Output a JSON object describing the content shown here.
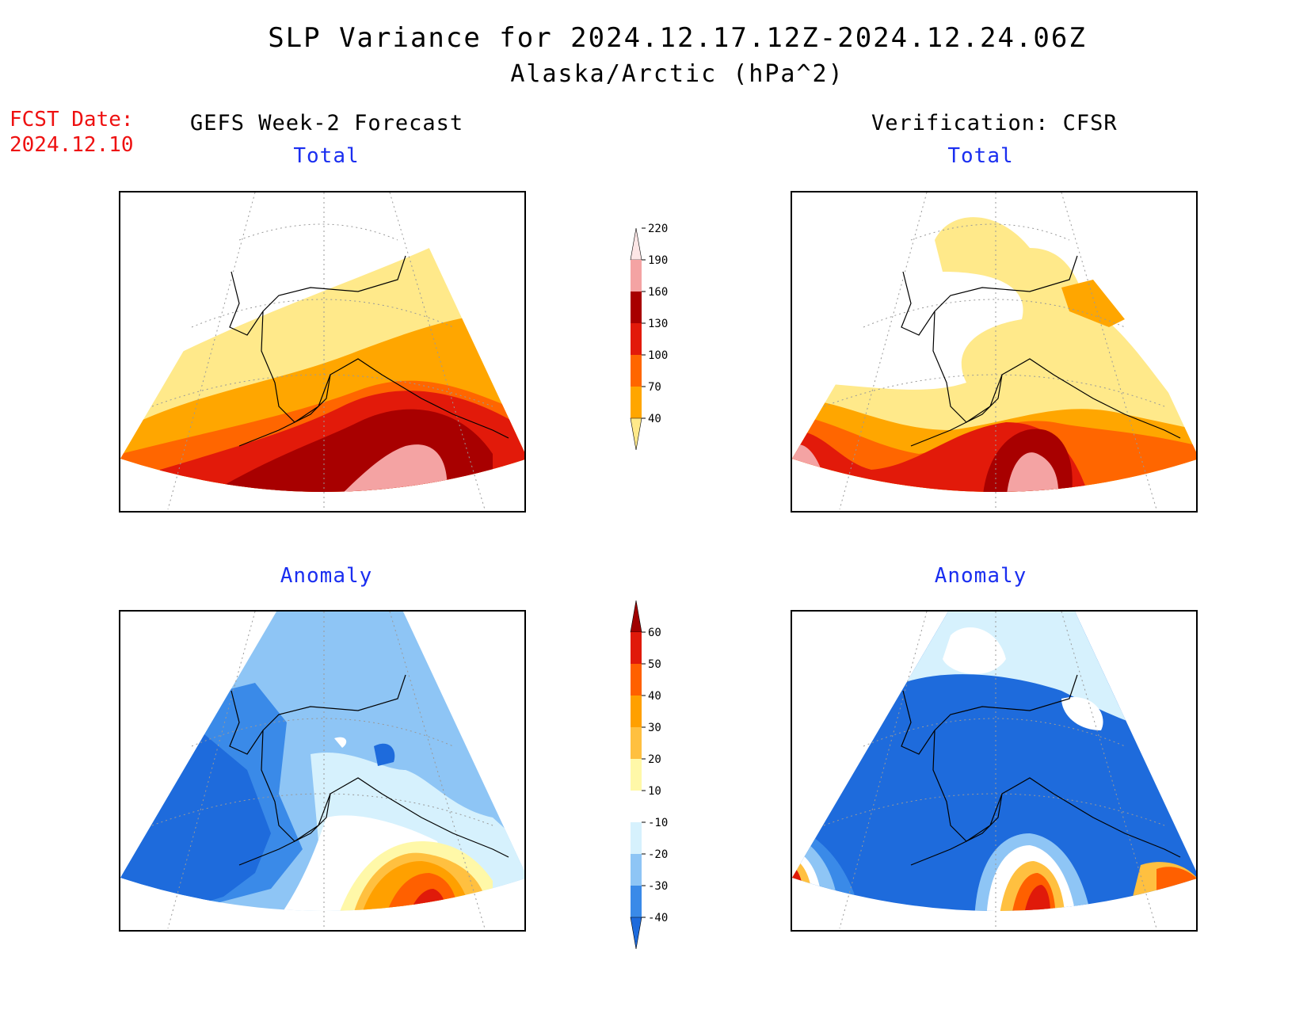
{
  "title": "SLP Variance for 2024.12.17.12Z-2024.12.24.06Z",
  "subtitle": "Alaska/Arctic (hPa^2)",
  "fcst_date_label": "FCST Date:",
  "fcst_date_value": "2024.12.10",
  "left_heading": "GEFS Week-2 Forecast",
  "right_heading": "Verification: CFSR",
  "panels": {
    "forecast_total_label": "Total",
    "verification_total_label": "Total",
    "forecast_anomaly_label": "Anomaly",
    "verification_anomaly_label": "Anomaly"
  },
  "total_colorbar": {
    "levels": [
      "40",
      "70",
      "100",
      "130",
      "160",
      "190",
      "220"
    ],
    "colors": [
      "#ffe98a",
      "#ffa600",
      "#ff6600",
      "#e21a0a",
      "#a80000",
      "#f4a3a3",
      "#fde6e6"
    ]
  },
  "anomaly_colorbar": {
    "levels": [
      "-40",
      "-30",
      "-20",
      "-10",
      "10",
      "20",
      "30",
      "40",
      "50",
      "60"
    ],
    "colors": [
      "#1e6bdc",
      "#3a8ae8",
      "#8ec5f5",
      "#d6f1fd",
      "#ffffff",
      "#fff8a8",
      "#ffc040",
      "#ffa000",
      "#ff6000",
      "#e01a0a",
      "#a00000"
    ]
  }
}
